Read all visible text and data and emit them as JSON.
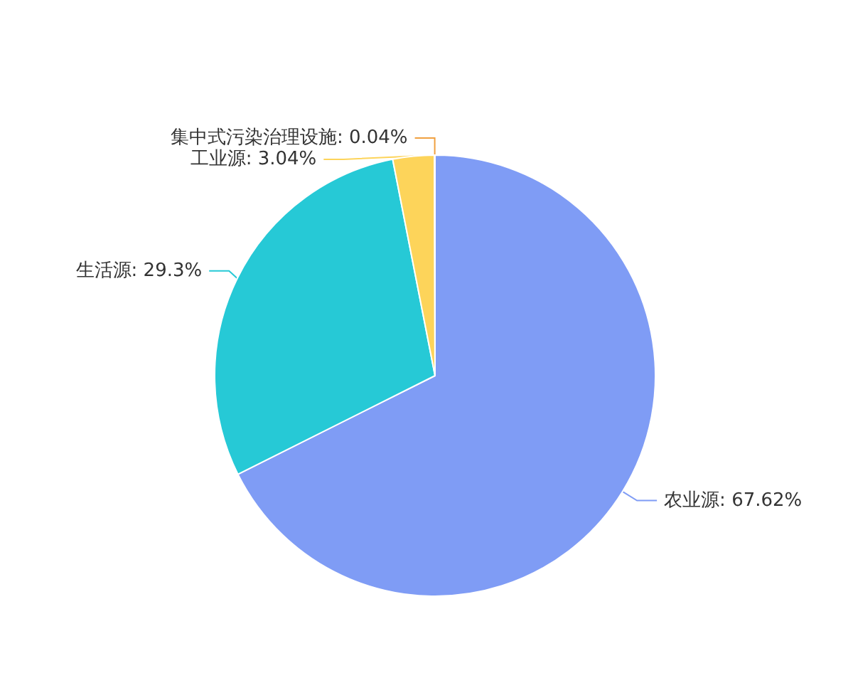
{
  "chart_data": {
    "type": "pie",
    "categories": [
      "农业源",
      "生活源",
      "工业源",
      "集中式污染治理设施"
    ],
    "values": [
      67.62,
      29.3,
      3.04,
      0.04
    ],
    "value_labels": [
      "67.62%",
      "29.3%",
      "3.04%",
      "0.04%"
    ],
    "colors": [
      "#7f9cf5",
      "#26c9d6",
      "#fdd45a",
      "#f0a040"
    ],
    "legend": false
  }
}
